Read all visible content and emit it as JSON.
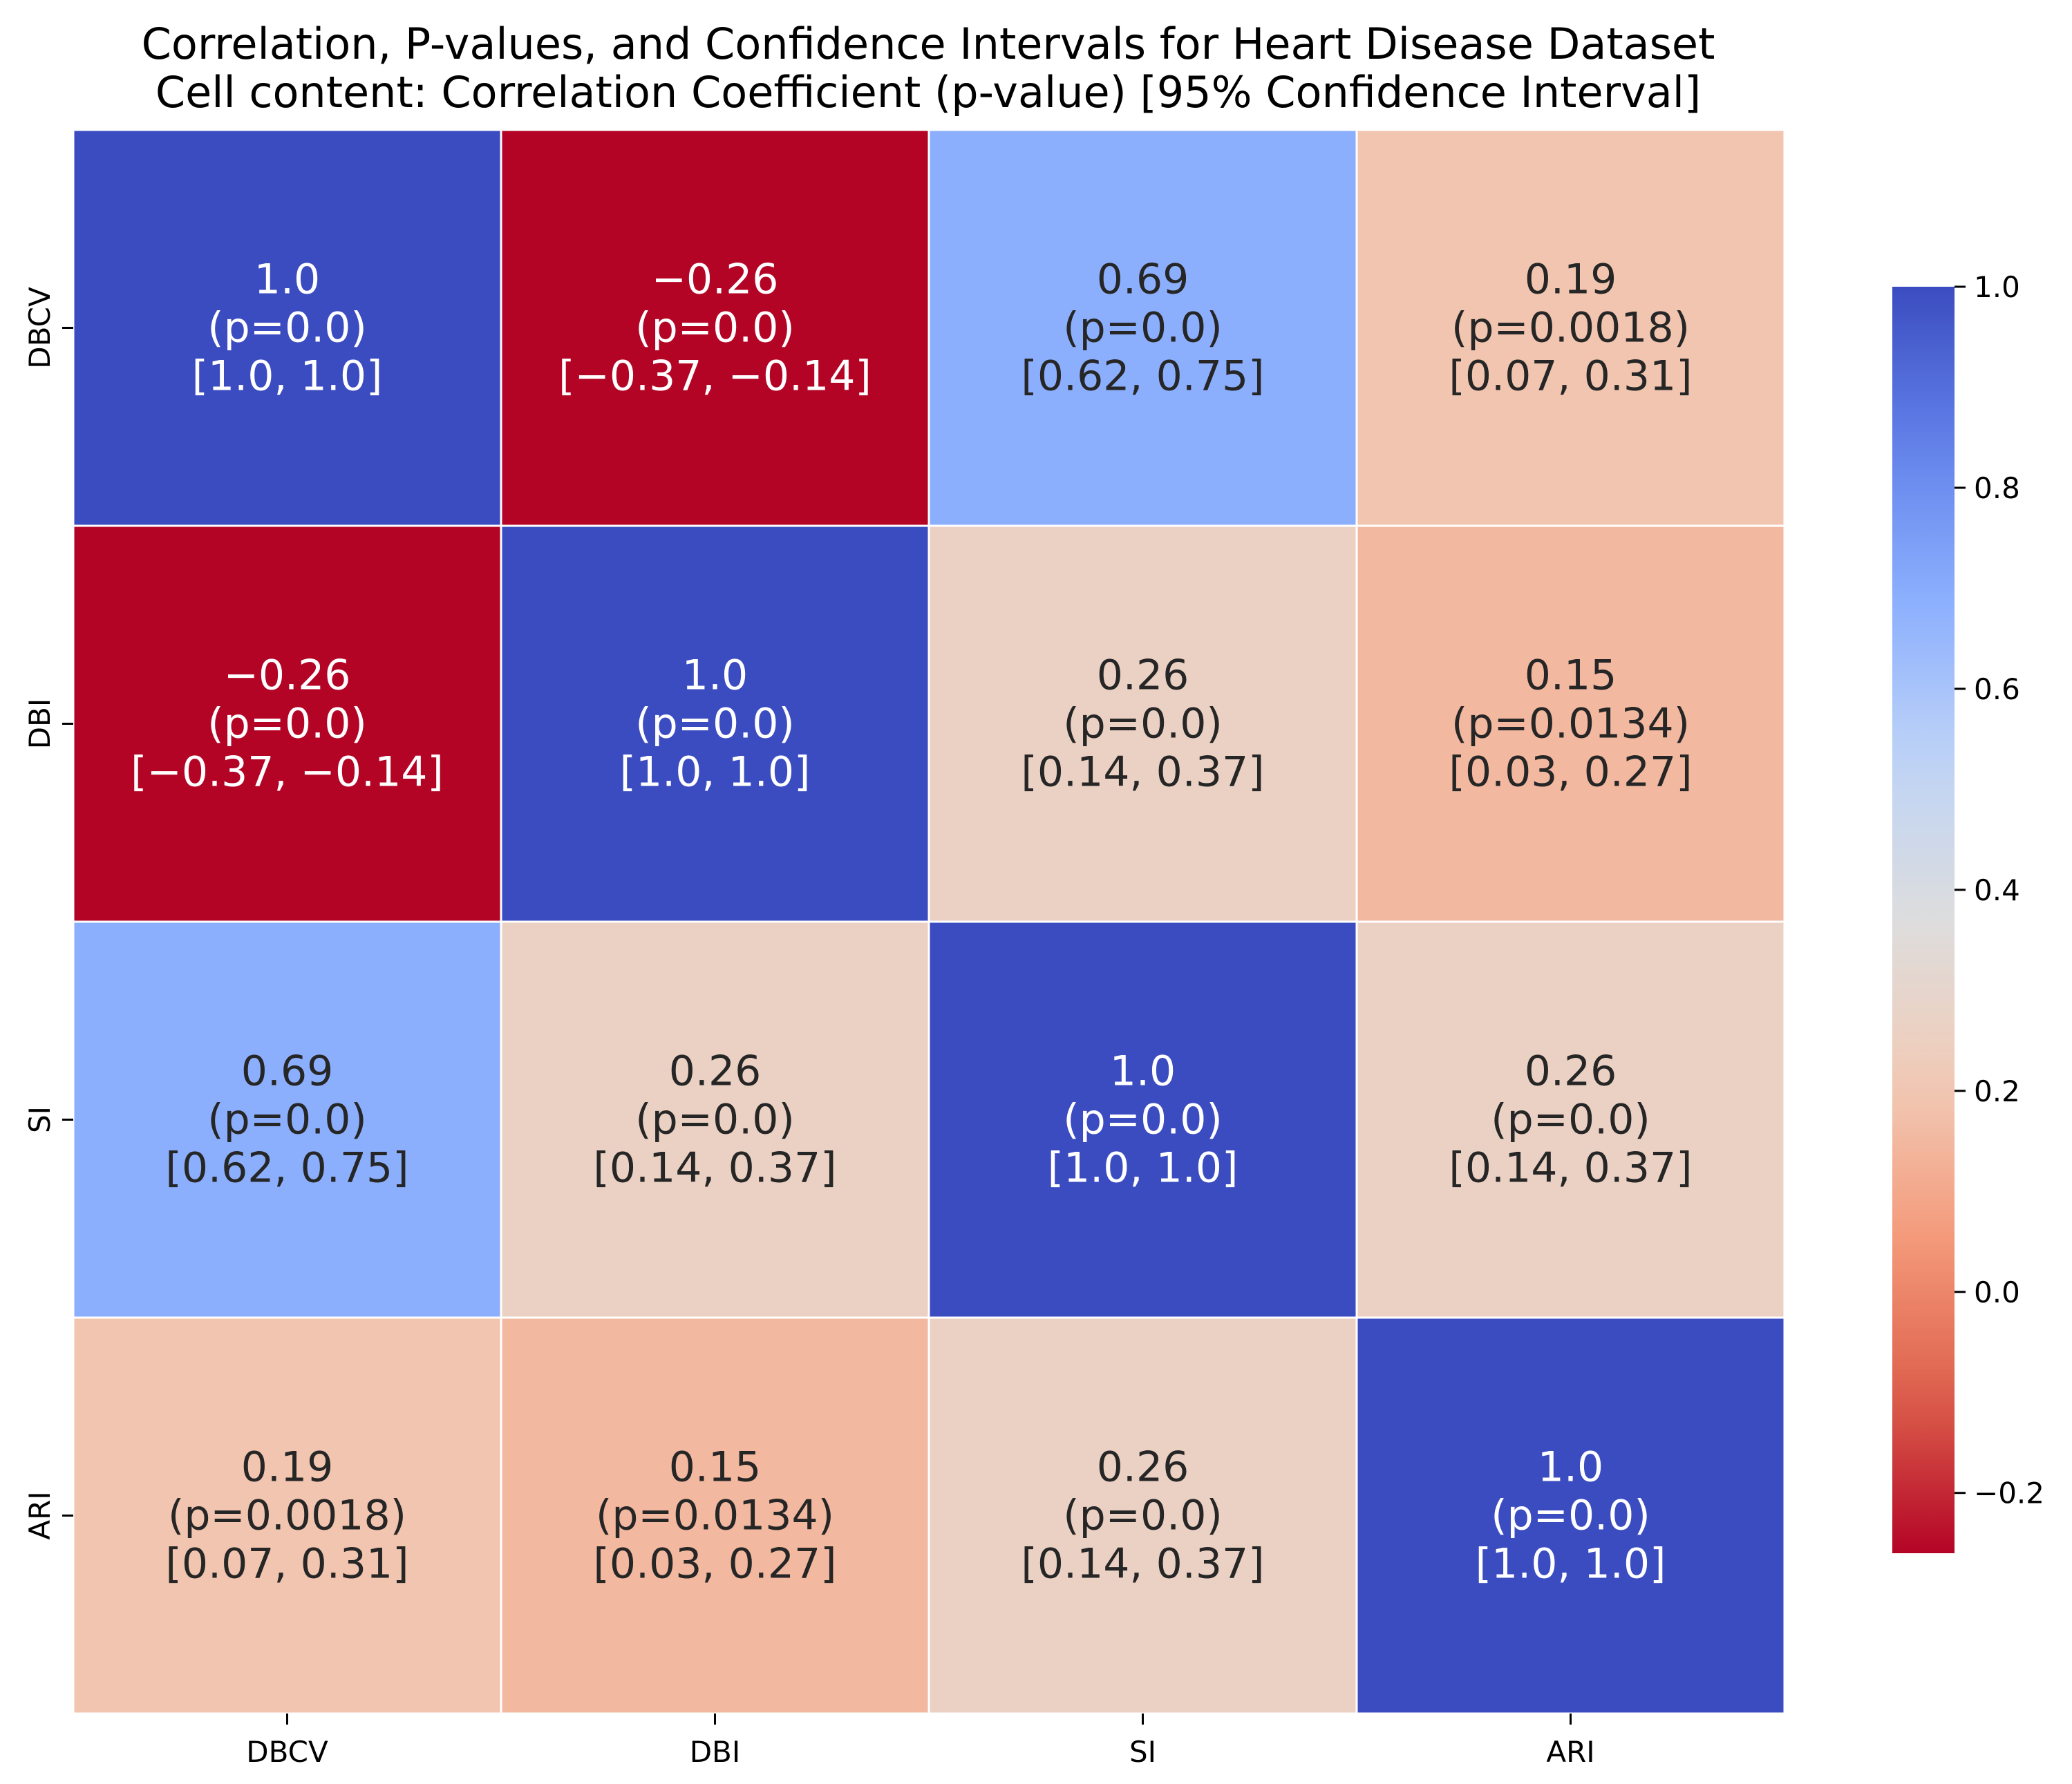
{
  "chart_data": {
    "type": "heatmap",
    "title": "Correlation, P-values, and Confidence Intervals for Heart Disease Dataset",
    "subtitle": "Cell content: Correlation Coefficient (p-value) [95% Confidence Interval]",
    "xlabel": "",
    "ylabel": "",
    "x_categories": [
      "DBCV",
      "DBI",
      "SI",
      "ARI"
    ],
    "y_categories": [
      "DBCV",
      "DBI",
      "SI",
      "ARI"
    ],
    "values": [
      [
        1.0,
        -0.26,
        0.69,
        0.19
      ],
      [
        -0.26,
        1.0,
        0.26,
        0.15
      ],
      [
        0.69,
        0.26,
        1.0,
        0.26
      ],
      [
        0.19,
        0.15,
        0.26,
        1.0
      ]
    ],
    "value_labels": [
      [
        "1.0",
        "−0.26",
        "0.69",
        "0.19"
      ],
      [
        "−0.26",
        "1.0",
        "0.26",
        "0.15"
      ],
      [
        "0.69",
        "0.26",
        "1.0",
        "0.26"
      ],
      [
        "0.19",
        "0.15",
        "0.26",
        "1.0"
      ]
    ],
    "p_labels": [
      [
        "(p=0.0)",
        "(p=0.0)",
        "(p=0.0)",
        "(p=0.0018)"
      ],
      [
        "(p=0.0)",
        "(p=0.0)",
        "(p=0.0)",
        "(p=0.0134)"
      ],
      [
        "(p=0.0)",
        "(p=0.0)",
        "(p=0.0)",
        "(p=0.0)"
      ],
      [
        "(p=0.0018)",
        "(p=0.0134)",
        "(p=0.0)",
        "(p=0.0)"
      ]
    ],
    "ci_labels": [
      [
        "[1.0, 1.0]",
        "[−0.37, −0.14]",
        "[0.62, 0.75]",
        "[0.07, 0.31]"
      ],
      [
        "[−0.37, −0.14]",
        "[1.0, 1.0]",
        "[0.14, 0.37]",
        "[0.03, 0.27]"
      ],
      [
        "[0.62, 0.75]",
        "[0.14, 0.37]",
        "[1.0, 1.0]",
        "[0.14, 0.37]"
      ],
      [
        "[0.07, 0.31]",
        "[0.03, 0.27]",
        "[0.14, 0.37]",
        "[1.0, 1.0]"
      ]
    ],
    "colormap": "coolwarm_r",
    "vmin": -0.26,
    "vmax": 1.0,
    "colorbar_ticks": [
      1.0,
      0.8,
      0.6,
      0.4,
      0.2,
      0.0,
      -0.2
    ],
    "colorbar_tick_labels": [
      "1.0",
      "0.8",
      "0.6",
      "0.4",
      "0.2",
      "0.0",
      "−0.2"
    ],
    "grid": false
  },
  "colors": {
    "cell_border": "#ffffff",
    "axis": "#000000",
    "text_dark": "#262626",
    "text_light": "#ffffff"
  }
}
